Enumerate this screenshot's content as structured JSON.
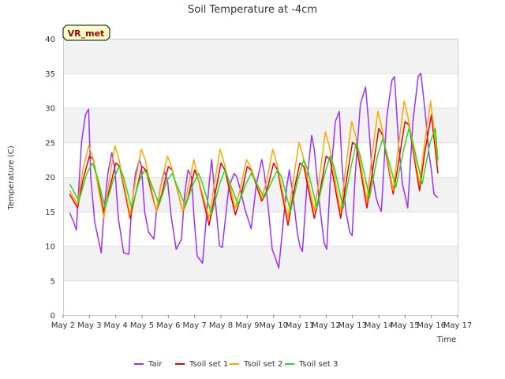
{
  "chart_data": {
    "type": "line",
    "title": "Soil Temperature at -4cm",
    "xlabel": "Time",
    "ylabel": "Temperature (C)",
    "badge": "VR_met",
    "ylim": [
      0,
      40
    ],
    "yticks": [
      0,
      5,
      10,
      15,
      20,
      25,
      30,
      35,
      40
    ],
    "xlim": [
      2,
      17
    ],
    "xticks": [
      2,
      3,
      4,
      5,
      6,
      7,
      8,
      9,
      10,
      11,
      12,
      13,
      14,
      15,
      16,
      17
    ],
    "xtick_labels": [
      "May 2",
      "May 3",
      "May 4",
      "May 5",
      "May 6",
      "May 7",
      "May 8",
      "May 9",
      "May 10",
      "May 11",
      "May 12",
      "May 13",
      "May 14",
      "May 15",
      "May 16",
      "May 17"
    ],
    "grid": true,
    "legend_position": "bottom",
    "series": [
      {
        "name": "Tair",
        "color": "#9b30ff",
        "x": [
          2.25,
          2.4,
          2.5,
          2.7,
          2.85,
          2.97,
          3.05,
          3.2,
          3.45,
          3.55,
          3.7,
          3.85,
          3.97,
          4.1,
          4.3,
          4.5,
          4.6,
          4.75,
          4.9,
          4.98,
          5.1,
          5.25,
          5.45,
          5.55,
          5.7,
          5.85,
          5.97,
          6.1,
          6.3,
          6.5,
          6.62,
          6.75,
          6.88,
          6.98,
          7.1,
          7.3,
          7.55,
          7.65,
          7.8,
          7.95,
          8.05,
          8.3,
          8.5,
          8.6,
          8.75,
          8.9,
          8.98,
          9.15,
          9.35,
          9.55,
          9.65,
          9.8,
          9.95,
          10.05,
          10.2,
          10.5,
          10.6,
          10.75,
          10.9,
          11.0,
          11.1,
          11.3,
          11.45,
          11.55,
          11.75,
          11.92,
          12.02,
          12.15,
          12.35,
          12.5,
          12.6,
          12.75,
          12.9,
          12.99,
          13.1,
          13.3,
          13.5,
          13.6,
          13.75,
          13.9,
          13.98,
          14.1,
          14.3,
          14.5,
          14.6,
          14.75,
          14.9,
          14.99,
          15.1,
          15.3,
          15.5,
          15.6,
          15.75,
          15.92,
          16.0,
          16.1,
          16.25
        ],
        "values": [
          14.8,
          13.5,
          12.3,
          25.0,
          29.0,
          29.8,
          20.0,
          13.5,
          9.0,
          15.0,
          20.5,
          23.5,
          21.0,
          14.0,
          9.0,
          8.8,
          15.5,
          20.5,
          22.5,
          21.5,
          15.0,
          12.0,
          11.0,
          15.0,
          18.5,
          20.8,
          19.5,
          14.5,
          9.5,
          11.0,
          17.5,
          21.0,
          20.0,
          14.0,
          8.5,
          7.5,
          19.0,
          22.5,
          16.0,
          10.0,
          9.8,
          18.5,
          20.5,
          20.0,
          18.0,
          15.5,
          14.5,
          12.5,
          19.0,
          22.5,
          20.5,
          15.5,
          9.5,
          8.5,
          6.8,
          18.5,
          21.0,
          17.0,
          12.0,
          10.0,
          9.2,
          20.5,
          26.0,
          24.0,
          16.0,
          10.5,
          9.5,
          19.0,
          28.0,
          29.5,
          22.0,
          15.0,
          12.0,
          11.5,
          20.0,
          30.5,
          33.0,
          28.5,
          20.5,
          17.0,
          16.0,
          15.0,
          28.5,
          34.0,
          34.5,
          25.0,
          19.0,
          17.5,
          15.5,
          28.0,
          34.5,
          35.0,
          30.0,
          23.0,
          21.0,
          17.5,
          17.0
        ]
      },
      {
        "name": "Tsoil set 1",
        "color": "#ee0000",
        "x": [
          2.25,
          2.55,
          2.75,
          3.0,
          3.15,
          3.55,
          3.75,
          4.0,
          4.15,
          4.55,
          4.75,
          5.0,
          5.15,
          5.55,
          5.75,
          6.0,
          6.15,
          6.55,
          6.75,
          7.0,
          7.15,
          7.55,
          7.75,
          8.0,
          8.15,
          8.55,
          8.75,
          9.0,
          9.15,
          9.55,
          9.75,
          10.0,
          10.15,
          10.55,
          10.75,
          11.0,
          11.15,
          11.55,
          11.75,
          12.0,
          12.15,
          12.55,
          12.75,
          13.0,
          13.15,
          13.55,
          13.75,
          14.0,
          14.15,
          14.55,
          14.75,
          15.0,
          15.15,
          15.55,
          15.75,
          16.0,
          16.25
        ],
        "values": [
          17.5,
          15.5,
          19.5,
          23.0,
          22.5,
          14.8,
          18.0,
          22.0,
          21.5,
          14.0,
          17.5,
          21.5,
          21.0,
          15.0,
          17.5,
          21.5,
          21.0,
          15.0,
          17.0,
          21.0,
          19.5,
          13.0,
          17.0,
          22.0,
          21.0,
          14.5,
          17.0,
          21.5,
          21.0,
          16.5,
          18.0,
          22.0,
          21.0,
          13.0,
          17.5,
          22.0,
          21.5,
          14.0,
          17.5,
          23.0,
          22.5,
          14.0,
          19.0,
          25.0,
          24.5,
          15.5,
          20.5,
          27.0,
          26.0,
          17.5,
          22.0,
          28.0,
          27.5,
          18.0,
          23.5,
          29.0,
          20.5
        ]
      },
      {
        "name": "Tsoil set 2",
        "color": "#ffa500",
        "x": [
          2.25,
          2.55,
          2.75,
          2.97,
          3.12,
          3.55,
          3.75,
          3.97,
          4.12,
          4.55,
          4.75,
          4.97,
          5.12,
          5.55,
          5.75,
          5.97,
          6.12,
          6.55,
          6.75,
          6.97,
          7.12,
          7.55,
          7.75,
          7.97,
          8.12,
          8.55,
          8.75,
          8.97,
          9.12,
          9.55,
          9.75,
          9.97,
          10.12,
          10.55,
          10.75,
          10.97,
          11.12,
          11.55,
          11.75,
          11.97,
          12.12,
          12.55,
          12.75,
          12.97,
          13.12,
          13.55,
          13.75,
          13.97,
          14.12,
          14.55,
          14.75,
          14.97,
          15.12,
          15.55,
          15.75,
          15.97,
          16.25
        ],
        "values": [
          18.0,
          16.0,
          21.0,
          24.5,
          23.0,
          14.0,
          19.5,
          24.5,
          22.5,
          14.5,
          19.5,
          24.0,
          22.5,
          15.0,
          19.5,
          23.0,
          21.5,
          15.0,
          18.5,
          22.5,
          20.0,
          14.0,
          19.0,
          24.0,
          22.0,
          15.5,
          18.5,
          22.5,
          21.5,
          17.0,
          19.5,
          24.0,
          22.0,
          14.0,
          19.5,
          25.0,
          23.0,
          15.0,
          20.0,
          26.5,
          24.5,
          15.0,
          21.5,
          28.0,
          26.0,
          16.5,
          23.5,
          29.5,
          27.0,
          18.0,
          24.5,
          31.0,
          28.5,
          19.0,
          25.0,
          31.0,
          22.0
        ]
      },
      {
        "name": "Tsoil set 3",
        "color": "#22dd22",
        "x": [
          2.25,
          2.6,
          2.9,
          3.12,
          3.3,
          3.6,
          3.9,
          4.12,
          4.3,
          4.6,
          4.9,
          5.1,
          5.3,
          5.65,
          5.95,
          6.15,
          6.3,
          6.65,
          6.95,
          7.15,
          7.3,
          7.65,
          7.95,
          8.15,
          8.3,
          8.65,
          8.95,
          9.15,
          9.3,
          9.65,
          9.95,
          10.15,
          10.3,
          10.65,
          10.95,
          11.15,
          11.3,
          11.65,
          11.95,
          12.15,
          12.3,
          12.65,
          12.95,
          13.15,
          13.3,
          13.65,
          13.95,
          14.15,
          14.3,
          14.65,
          14.95,
          15.15,
          15.3,
          15.65,
          15.95,
          16.15,
          16.25
        ],
        "values": [
          19.0,
          16.5,
          20.5,
          22.0,
          20.0,
          15.5,
          19.5,
          21.5,
          20.0,
          15.5,
          19.5,
          21.0,
          19.5,
          16.0,
          19.5,
          20.5,
          19.0,
          15.8,
          19.0,
          20.5,
          19.0,
          14.5,
          19.0,
          21.0,
          19.5,
          16.0,
          19.0,
          20.5,
          19.5,
          17.0,
          19.5,
          21.0,
          20.0,
          15.0,
          20.0,
          22.5,
          21.0,
          15.5,
          20.5,
          23.0,
          21.5,
          15.5,
          21.5,
          25.0,
          23.0,
          17.0,
          23.0,
          25.5,
          23.5,
          18.5,
          24.0,
          27.0,
          25.0,
          19.0,
          25.0,
          27.0,
          22.5
        ]
      }
    ]
  }
}
